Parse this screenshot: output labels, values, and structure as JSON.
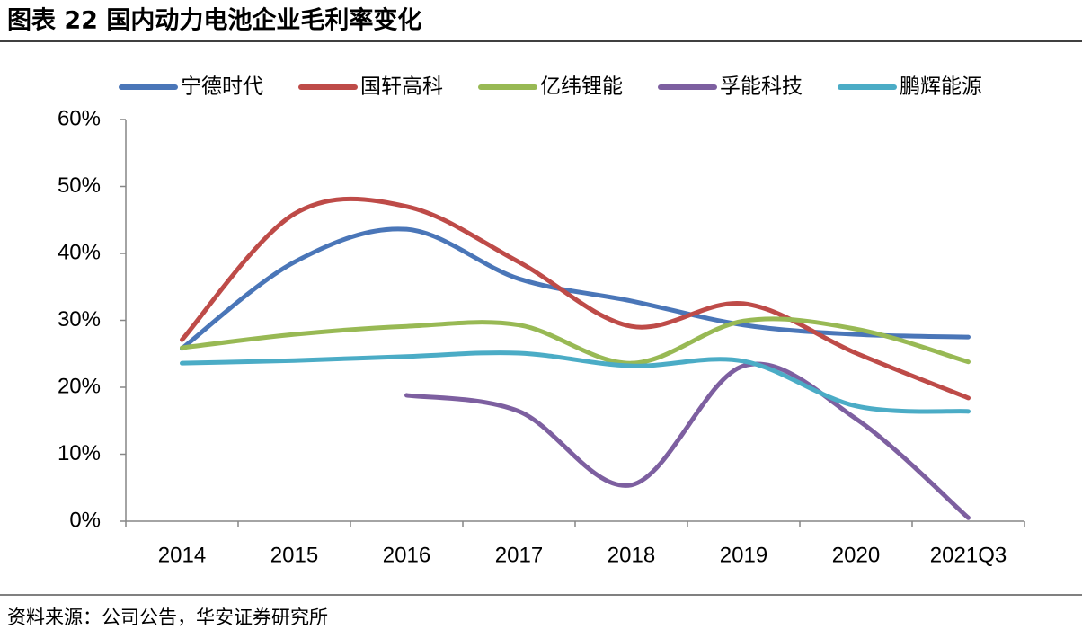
{
  "chart_data": {
    "type": "line",
    "title": "图表 22 国内动力电池企业毛利率变化",
    "source": "资料来源：公司公告，华安证券研究所",
    "categories": [
      "2014",
      "2015",
      "2016",
      "2017",
      "2018",
      "2019",
      "2020",
      "2021Q3"
    ],
    "series": [
      {
        "name": "宁德时代",
        "color": "#4a76b8",
        "values": [
          25.8,
          38.7,
          43.6,
          36.2,
          32.9,
          29.3,
          27.9,
          27.5
        ]
      },
      {
        "name": "国轩高科",
        "color": "#be4b48",
        "values": [
          27.1,
          45.9,
          47.0,
          38.7,
          29.1,
          32.5,
          25.1,
          18.4
        ]
      },
      {
        "name": "亿纬锂能",
        "color": "#98b954",
        "values": [
          25.9,
          27.9,
          29.1,
          29.3,
          23.6,
          29.9,
          28.7,
          23.8
        ]
      },
      {
        "name": "孚能科技",
        "color": "#7d5fa0",
        "values": [
          null,
          null,
          18.8,
          16.4,
          5.4,
          23.2,
          15.3,
          0.5
        ]
      },
      {
        "name": "鹏辉能源",
        "color": "#4bacc6",
        "values": [
          23.6,
          24.0,
          24.6,
          25.1,
          23.2,
          23.9,
          17.2,
          16.4
        ]
      }
    ],
    "ylim": [
      0,
      60
    ],
    "yticks": [
      {
        "value": 0,
        "label": "0%"
      },
      {
        "value": 10,
        "label": "10%"
      },
      {
        "value": 20,
        "label": "20%"
      },
      {
        "value": 30,
        "label": "30%"
      },
      {
        "value": 40,
        "label": "40%"
      },
      {
        "value": 50,
        "label": "50%"
      },
      {
        "value": 60,
        "label": "60%"
      }
    ],
    "legend": "top",
    "grid": false,
    "smooth": true
  }
}
